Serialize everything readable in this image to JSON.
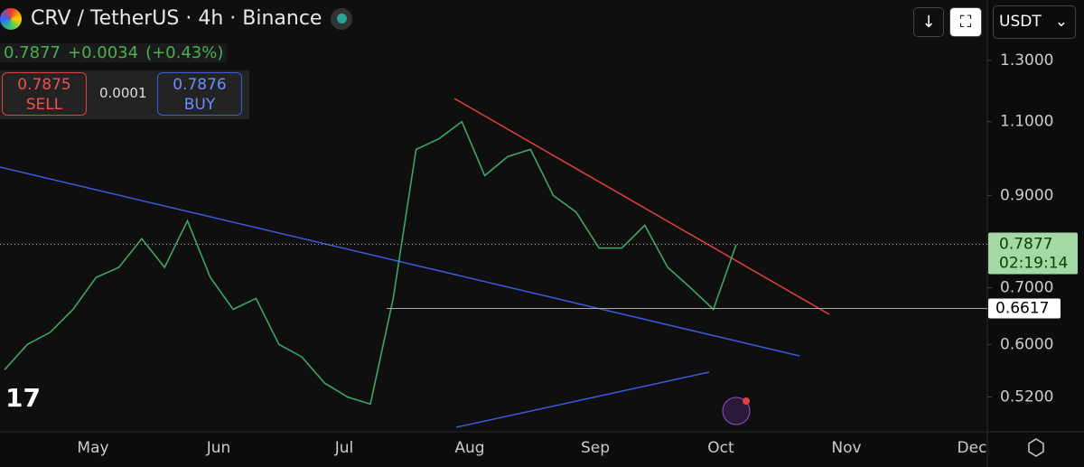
{
  "header": {
    "symbol": "CRV / TetherUS · 4h · Binance",
    "last": "0.7877",
    "change": "+0.0034",
    "change_pct": "(+0.43%)",
    "sell_price": "0.7875",
    "sell_label": "SELL",
    "spread": "0.0001",
    "buy_price": "0.7876",
    "buy_label": "BUY",
    "currency": "USDT"
  },
  "chart_data": {
    "type": "line",
    "color": "#3fa46a",
    "log_scale": true,
    "x_labels": [
      "May",
      "Jun",
      "Jul",
      "Aug",
      "Sep",
      "Oct",
      "Nov",
      "Dec"
    ],
    "values": [
      0.56,
      0.6,
      0.62,
      0.66,
      0.72,
      0.74,
      0.8,
      0.74,
      0.84,
      0.72,
      0.66,
      0.68,
      0.6,
      0.58,
      0.54,
      0.52,
      0.51,
      0.68,
      1.02,
      1.05,
      1.1,
      0.95,
      1.0,
      1.02,
      0.9,
      0.86,
      0.78,
      0.78,
      0.83,
      0.74,
      0.7,
      0.66,
      0.7877
    ],
    "ylim": [
      0.473,
      1.532
    ],
    "yticks": [
      {
        "value": 1.3,
        "label": "1.3000"
      },
      {
        "value": 1.1,
        "label": "1.1000"
      },
      {
        "value": 0.9,
        "label": "0.9000"
      },
      {
        "value": 0.7,
        "label": "0.7000"
      },
      {
        "value": 0.6,
        "label": "0.6000"
      },
      {
        "value": 0.52,
        "label": "0.5200"
      }
    ],
    "last_price": {
      "value": 0.7877,
      "label": "0.7877",
      "countdown": "02:19:14"
    },
    "level": {
      "value": 0.6617,
      "label": "0.6617"
    }
  }
}
